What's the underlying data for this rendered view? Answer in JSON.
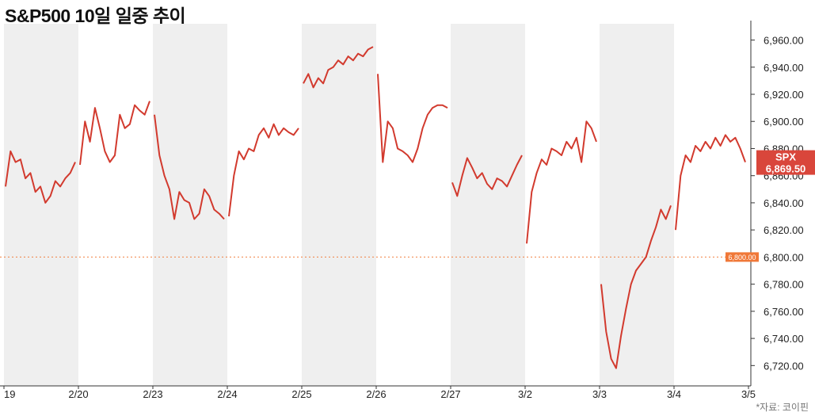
{
  "title": "S&P500 10일 일중 추이",
  "source": "*자료: 코이핀",
  "colors": {
    "line": "#d23a2e",
    "band": "#efefef",
    "ref_line": "#f08040",
    "ref_label_bg": "#f07838",
    "last_badge_bg": "#d9463b"
  },
  "chart_data": {
    "type": "line",
    "title": "S&P500 10일 일중 추이",
    "series_name": "SPX",
    "last_value_label": "6,869.50",
    "reference_line": {
      "value": 6800,
      "label": "6,800.00"
    },
    "ylim": [
      6705,
      6972
    ],
    "yticks": [
      6720,
      6740,
      6760,
      6780,
      6800,
      6820,
      6840,
      6860,
      6880,
      6900,
      6920,
      6940,
      6960
    ],
    "ytick_labels": [
      "6,720.00",
      "6,740.00",
      "6,760.00",
      "6,780.00",
      "6,800.00",
      "6,820.00",
      "6,840.00",
      "6,860.00",
      "6,880.00",
      "6,900.00",
      "6,920.00",
      "6,940.00",
      "6,960.00"
    ],
    "grid": false,
    "sessions": [
      {
        "label": "19",
        "shaded": true,
        "values": [
          6852,
          6878,
          6870,
          6872,
          6858,
          6862,
          6848,
          6852,
          6840,
          6845,
          6856,
          6852,
          6858,
          6862,
          6870
        ]
      },
      {
        "label": "2/20",
        "shaded": false,
        "values": [
          6868,
          6900,
          6885,
          6910,
          6895,
          6878,
          6870,
          6875,
          6905,
          6895,
          6898,
          6912,
          6908,
          6905,
          6915
        ]
      },
      {
        "label": "2/23",
        "shaded": true,
        "values": [
          6905,
          6875,
          6860,
          6850,
          6828,
          6848,
          6842,
          6840,
          6828,
          6832,
          6850,
          6845,
          6835,
          6832,
          6828
        ]
      },
      {
        "label": "2/24",
        "shaded": false,
        "values": [
          6830,
          6860,
          6878,
          6872,
          6880,
          6878,
          6890,
          6895,
          6888,
          6898,
          6890,
          6895,
          6892,
          6890,
          6895
        ]
      },
      {
        "label": "2/25",
        "shaded": true,
        "values": [
          6928,
          6935,
          6925,
          6932,
          6928,
          6938,
          6940,
          6945,
          6942,
          6948,
          6945,
          6950,
          6948,
          6953,
          6955
        ]
      },
      {
        "label": "2/26",
        "shaded": false,
        "values": [
          6935,
          6870,
          6900,
          6895,
          6880,
          6878,
          6875,
          6870,
          6880,
          6895,
          6905,
          6910,
          6912,
          6912,
          6910
        ]
      },
      {
        "label": "2/27",
        "shaded": true,
        "values": [
          6855,
          6845,
          6860,
          6873,
          6866,
          6858,
          6862,
          6854,
          6850,
          6858,
          6856,
          6852,
          6860,
          6868,
          6875
        ]
      },
      {
        "label": "3/2",
        "shaded": false,
        "values": [
          6810,
          6848,
          6862,
          6872,
          6868,
          6880,
          6878,
          6875,
          6885,
          6880,
          6888,
          6870,
          6900,
          6895,
          6885
        ]
      },
      {
        "label": "3/3",
        "shaded": true,
        "values": [
          6780,
          6745,
          6725,
          6718,
          6742,
          6762,
          6780,
          6790,
          6795,
          6800,
          6812,
          6822,
          6835,
          6828,
          6838
        ]
      },
      {
        "label": "3/4",
        "shaded": false,
        "values": [
          6820,
          6860,
          6875,
          6870,
          6882,
          6878,
          6885,
          6880,
          6888,
          6882,
          6890,
          6885,
          6888,
          6880,
          6870
        ]
      }
    ],
    "end_tick_label": "3/5"
  }
}
